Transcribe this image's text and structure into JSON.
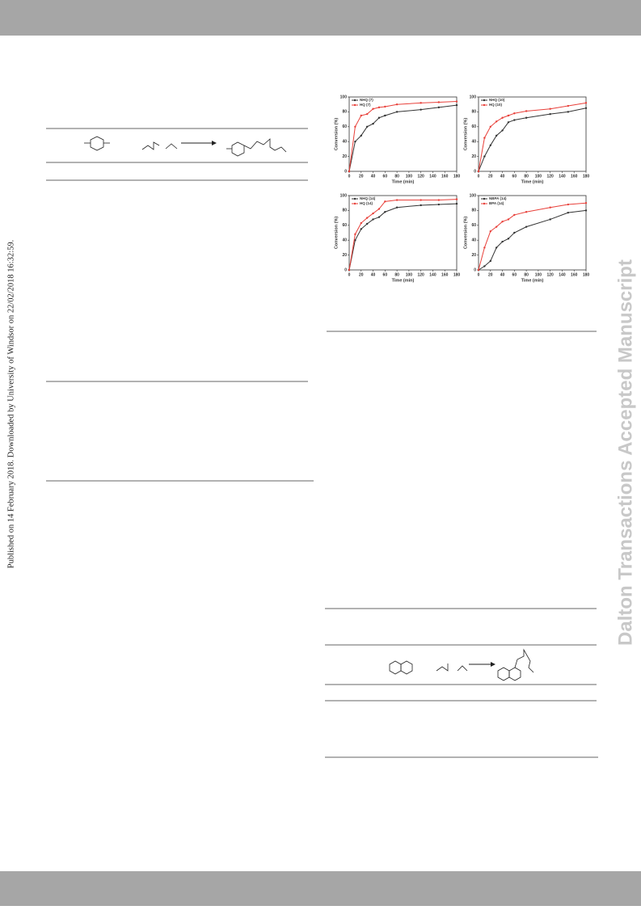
{
  "side_note": "Published on 14 February 2018. Downloaded by University of Windsor on 22/02/2018 16:32:59.",
  "watermark": "Dalton Transactions Accepted Manuscript",
  "chart_data": [
    {
      "type": "line",
      "x": [
        0,
        10,
        20,
        30,
        40,
        50,
        60,
        80,
        120,
        150,
        180
      ],
      "xlim": [
        0,
        180
      ],
      "xticks": [
        0,
        20,
        40,
        60,
        80,
        100,
        120,
        140,
        160,
        180
      ],
      "ylim": [
        0,
        100
      ],
      "yticks": [
        0,
        20,
        40,
        60,
        80,
        100
      ],
      "xlabel": "Time (min)",
      "ylabel": "Conversion (%)",
      "legend": "top-left",
      "series": [
        {
          "name": "NHQ (7)",
          "color": "#333333",
          "values": [
            0,
            40,
            48,
            60,
            64,
            72,
            75,
            80,
            83,
            86,
            89
          ]
        },
        {
          "name": "HQ (7)",
          "color": "#e8403a",
          "values": [
            0,
            60,
            75,
            77,
            84,
            86,
            87,
            90,
            92,
            93,
            94
          ]
        }
      ]
    },
    {
      "type": "line",
      "x": [
        0,
        10,
        20,
        30,
        40,
        50,
        60,
        80,
        120,
        150,
        180
      ],
      "xlim": [
        0,
        180
      ],
      "xticks": [
        0,
        20,
        40,
        60,
        80,
        100,
        120,
        140,
        160,
        180
      ],
      "ylim": [
        0,
        100
      ],
      "yticks": [
        0,
        20,
        40,
        60,
        80,
        100
      ],
      "xlabel": "Time (min)",
      "ylabel": "Conversion (%)",
      "legend": "top-left",
      "series": [
        {
          "name": "NHQ (10)",
          "color": "#333333",
          "values": [
            0,
            20,
            35,
            48,
            55,
            66,
            69,
            72,
            77,
            80,
            85
          ]
        },
        {
          "name": "HQ (10)",
          "color": "#e8403a",
          "values": [
            0,
            45,
            60,
            67,
            72,
            75,
            78,
            81,
            84,
            88,
            92
          ]
        }
      ]
    },
    {
      "type": "line",
      "x": [
        0,
        10,
        20,
        30,
        40,
        50,
        60,
        80,
        120,
        150,
        180
      ],
      "xlim": [
        0,
        180
      ],
      "xticks": [
        0,
        20,
        40,
        60,
        80,
        100,
        120,
        140,
        160,
        180
      ],
      "ylim": [
        0,
        100
      ],
      "yticks": [
        0,
        20,
        40,
        60,
        80,
        100
      ],
      "xlabel": "Time (min)",
      "ylabel": "Conversion (%)",
      "legend": "top-left",
      "series": [
        {
          "name": "NHQ (14)",
          "color": "#333333",
          "values": [
            0,
            40,
            55,
            62,
            68,
            71,
            78,
            84,
            87,
            88,
            89
          ]
        },
        {
          "name": "HQ (14)",
          "color": "#e8403a",
          "values": [
            0,
            48,
            63,
            70,
            76,
            82,
            92,
            94,
            94,
            94,
            95
          ]
        }
      ]
    },
    {
      "type": "line",
      "x": [
        0,
        10,
        20,
        30,
        40,
        50,
        60,
        80,
        120,
        150,
        180
      ],
      "xlim": [
        0,
        180
      ],
      "xticks": [
        0,
        20,
        40,
        60,
        80,
        100,
        120,
        140,
        160,
        180
      ],
      "ylim": [
        0,
        100
      ],
      "yticks": [
        0,
        20,
        40,
        60,
        80,
        100
      ],
      "xlabel": "Time (min)",
      "ylabel": "Conversion (%)",
      "legend": "top-left",
      "series": [
        {
          "name": "NBPA (14)",
          "color": "#333333",
          "values": [
            0,
            5,
            12,
            30,
            38,
            42,
            50,
            58,
            68,
            77,
            80
          ]
        },
        {
          "name": "BPA (14)",
          "color": "#e8403a",
          "values": [
            0,
            30,
            52,
            58,
            65,
            68,
            74,
            78,
            84,
            88,
            90
          ]
        }
      ]
    }
  ]
}
